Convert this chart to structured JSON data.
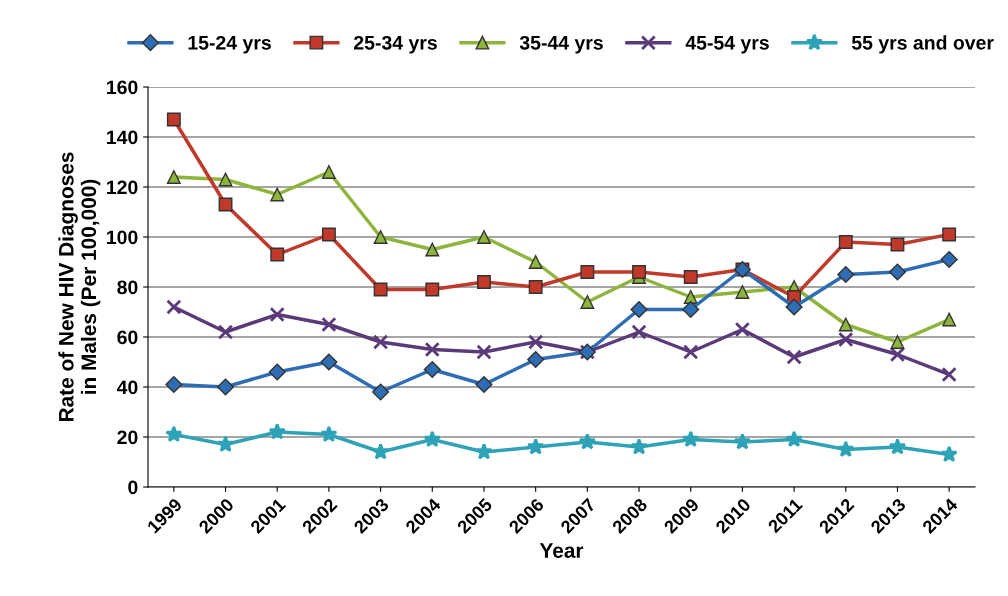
{
  "chart_data": {
    "type": "line",
    "xlabel": "Year",
    "ylabel": "Rate of New HIV Diagnoses\nin Males (Per 100,000)",
    "categories": [
      "1999",
      "2000",
      "2001",
      "2002",
      "2003",
      "2004",
      "2005",
      "2006",
      "2007",
      "2008",
      "2009",
      "2010",
      "2011",
      "2012",
      "2013",
      "2014"
    ],
    "ylim": [
      0,
      160
    ],
    "yticks": [
      0,
      20,
      40,
      60,
      80,
      100,
      120,
      140,
      160
    ],
    "grid": "y",
    "legend": "top",
    "series": [
      {
        "name": "15-24 yrs",
        "color": "#2e6db4",
        "marker": "diamond",
        "values": [
          41,
          40,
          46,
          50,
          38,
          47,
          41,
          51,
          54,
          71,
          71,
          87,
          72,
          85,
          86,
          91
        ]
      },
      {
        "name": "25-34 yrs",
        "color": "#c0392b",
        "marker": "square",
        "values": [
          147,
          113,
          93,
          101,
          79,
          79,
          82,
          80,
          86,
          86,
          84,
          87,
          76,
          98,
          97,
          101
        ]
      },
      {
        "name": "35-44 yrs",
        "color": "#8db53c",
        "marker": "triangle",
        "values": [
          124,
          123,
          117,
          126,
          100,
          95,
          100,
          90,
          74,
          84,
          76,
          78,
          80,
          65,
          58,
          67
        ]
      },
      {
        "name": "45-54 yrs",
        "color": "#5b3a7a",
        "marker": "cross",
        "values": [
          72,
          62,
          69,
          65,
          58,
          55,
          54,
          58,
          54,
          62,
          54,
          63,
          52,
          59,
          53,
          45
        ]
      },
      {
        "name": "55 yrs and over",
        "color": "#2ea3b8",
        "marker": "star",
        "values": [
          21,
          17,
          22,
          21,
          14,
          19,
          14,
          16,
          18,
          16,
          19,
          18,
          19,
          15,
          16,
          13
        ]
      }
    ]
  }
}
